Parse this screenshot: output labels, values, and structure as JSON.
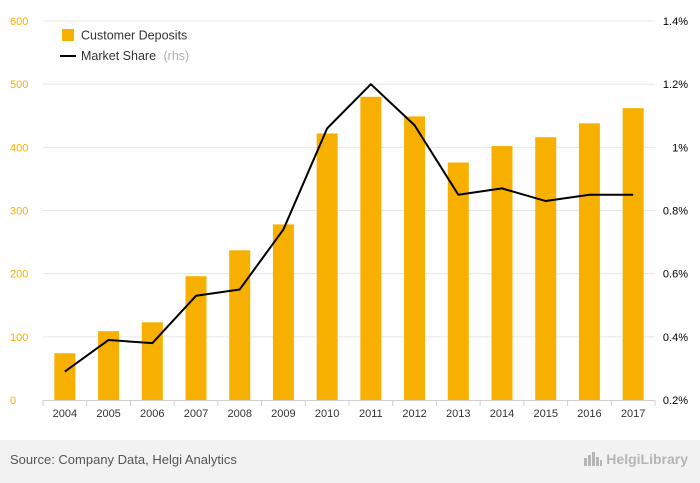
{
  "chart_data": {
    "type": "bar",
    "categories": [
      "2004",
      "2005",
      "2006",
      "2007",
      "2008",
      "2009",
      "2010",
      "2011",
      "2012",
      "2013",
      "2014",
      "2015",
      "2016",
      "2017"
    ],
    "series": [
      {
        "name": "Customer Deposits",
        "type": "bar",
        "axis": "left",
        "values": [
          74,
          109,
          123,
          196,
          237,
          278,
          422,
          480,
          449,
          376,
          402,
          416,
          438,
          462
        ]
      },
      {
        "name": "Market Share",
        "name_suffix": "(rhs)",
        "type": "line",
        "axis": "right",
        "values": [
          0.29,
          0.39,
          0.38,
          0.53,
          0.55,
          0.74,
          1.06,
          1.2,
          1.07,
          0.85,
          0.87,
          0.83,
          0.85,
          0.85
        ]
      }
    ],
    "y_left": {
      "ylim": [
        0,
        600
      ],
      "ticks": [
        "0",
        "100",
        "200",
        "300",
        "400",
        "500",
        "600"
      ]
    },
    "y_right": {
      "ylim": [
        0.2,
        1.4
      ],
      "ticks": [
        "0.2%",
        "0.4%",
        "0.6%",
        "0.8%",
        "1%",
        "1.2%",
        "1.4%"
      ]
    },
    "grid": true,
    "legend_position": "top-left",
    "colors": {
      "bar": "#f8b000",
      "line": "#000000",
      "left_axis_text": "#f8b000",
      "right_axis_text": "#000000",
      "grid": "#e6e6e6"
    }
  },
  "footer": {
    "source": "Source: Company Data, Helgi Analytics",
    "brand": "HelgiLibrary",
    "brand_icon": "city-skyline-icon"
  }
}
